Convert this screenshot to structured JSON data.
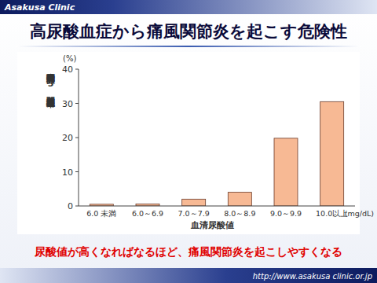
{
  "page": {
    "header": "Asakusa Clinic",
    "footer": "http://www.asakusa clinic.or.jp"
  },
  "chart_data": {
    "type": "bar",
    "title": "高尿酸血症から痛風関節炎を起こす危険性",
    "ylabel": "痛風関節炎の5年間累積発症率",
    "yunit": "(%)",
    "xlabel": "血清尿酸値",
    "xunit": "(mg/dL)",
    "annotations": [
      "尿酸値が高くなればなるほど、痛風関節炎を起こしやすくなる"
    ],
    "categories": [
      "6.0 未満",
      "6.0～6.9",
      "7.0～7.9",
      "8.0～8.9",
      "9.0～9.9",
      "10.0以上"
    ],
    "values": [
      0.5,
      0.6,
      2.0,
      4.0,
      19.8,
      30.5
    ],
    "color": "#f7b994",
    "ylim": [
      0,
      40
    ],
    "yticks": [
      0,
      10,
      20,
      30,
      40
    ],
    "grid": false
  }
}
